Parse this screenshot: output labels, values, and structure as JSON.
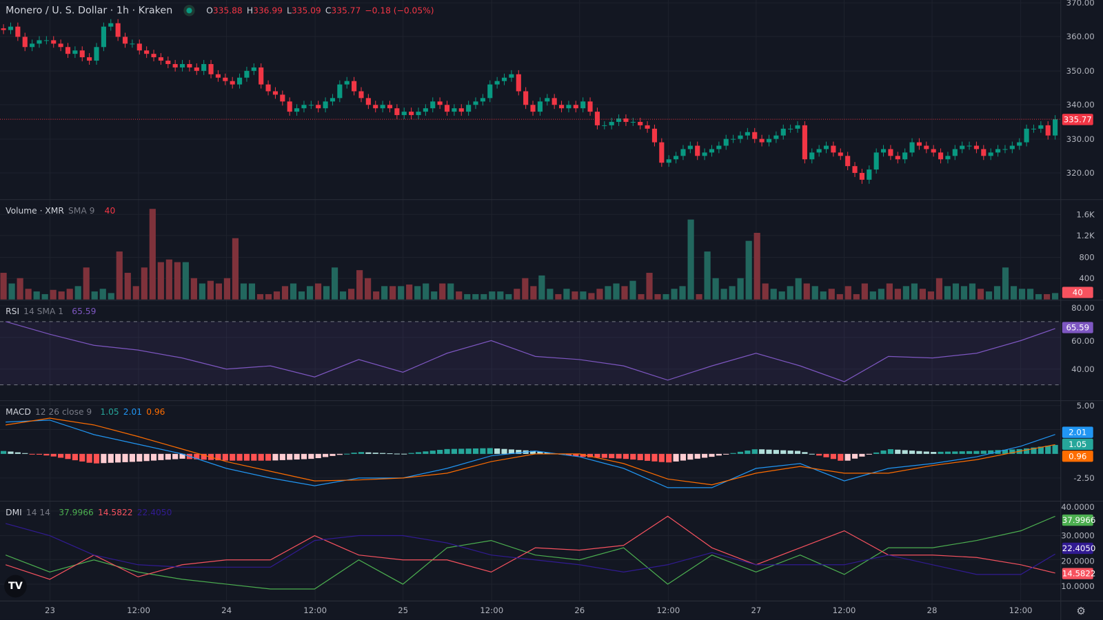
{
  "header": {
    "title": "Monero / U. S. Dollar · 1h · Kraken",
    "open_label": "O",
    "open": "335.88",
    "high_label": "H",
    "high": "336.99",
    "low_label": "L",
    "low": "335.09",
    "close_label": "C",
    "close": "335.77",
    "change": "−0.18 (−0.05%)",
    "status_color": "#089981"
  },
  "colors": {
    "up": "#089981",
    "down": "#f23645",
    "vol_up": "#22675e",
    "vol_down": "#7f323b",
    "rsi": "#7e57c2",
    "macd": "#2196f3",
    "signal": "#ff6d00",
    "plus_di": "#4caf50",
    "minus_di": "#f7525f",
    "adx": "#311b92"
  },
  "volume": {
    "label": "Volume · XMR",
    "param": "SMA 9",
    "value": "40",
    "ticks": [
      "1.6K",
      "1.2K",
      "800",
      "400"
    ]
  },
  "rsi": {
    "label": "RSI",
    "param": "14 SMA 1",
    "value": "65.59",
    "ticks": [
      "80.00",
      "60.00",
      "40.00"
    ]
  },
  "macd": {
    "label": "MACD",
    "param": "12 26 close 9",
    "hist": "1.05",
    "macd": "2.01",
    "signal": "0.96",
    "ticks": [
      "5.00",
      "-2.50"
    ]
  },
  "dmi": {
    "label": "DMI",
    "param": "14 14",
    "plus": "37.9966",
    "minus": "14.5822",
    "adx": "22.4050",
    "ticks": [
      "40.0000",
      "30.0000",
      "20.0000",
      "10.0000"
    ]
  },
  "price_axis": {
    "ticks": [
      "370.00",
      "360.00",
      "350.00",
      "340.00",
      "330.00",
      "320.00"
    ],
    "last": "335.77"
  },
  "time_axis": [
    "23",
    "12:00",
    "24",
    "12:00",
    "25",
    "12:00",
    "26",
    "12:00",
    "27",
    "12:00",
    "28",
    "12:00"
  ],
  "chart_data": [
    {
      "type": "candlestick",
      "title": "Monero / U. S. Dollar · 1h · Kraken",
      "ylim": [
        316,
        370
      ],
      "closes": [
        362,
        363,
        360,
        357,
        358,
        359,
        359,
        358,
        357,
        355,
        356,
        354,
        353,
        357,
        363,
        364,
        360,
        358,
        358,
        356,
        355,
        354,
        353,
        352,
        351,
        352,
        351,
        350,
        352,
        349,
        348,
        347,
        346,
        348,
        350,
        351,
        346,
        344,
        343,
        341,
        338,
        339,
        340,
        340,
        339,
        341,
        342,
        346,
        347,
        344,
        342,
        340,
        339,
        340,
        339,
        337,
        338,
        337,
        338,
        339,
        341,
        340,
        338,
        339,
        338,
        340,
        341,
        342,
        346,
        347,
        348,
        349,
        344,
        340,
        338,
        341,
        342,
        340,
        339,
        340,
        339,
        341,
        338,
        334,
        334,
        335,
        336,
        335,
        335,
        334,
        333,
        329,
        323,
        324,
        325,
        327,
        328,
        325,
        326,
        327,
        328,
        330,
        330,
        331,
        332,
        330,
        329,
        330,
        331,
        333,
        333,
        334,
        324,
        326,
        327,
        328,
        326,
        325,
        322,
        320,
        318,
        321,
        326,
        327,
        325,
        324,
        326,
        329,
        328,
        327,
        326,
        324,
        325,
        327,
        328,
        328,
        327,
        325,
        326,
        327,
        327,
        328,
        329,
        333,
        333,
        334,
        331,
        335.77
      ]
    },
    {
      "type": "bar",
      "title": "Volume · XMR",
      "ylim": [
        0,
        1700
      ],
      "values": [
        500,
        300,
        400,
        200,
        150,
        100,
        180,
        150,
        200,
        250,
        600,
        150,
        200,
        120,
        900,
        500,
        250,
        600,
        1700,
        700,
        750,
        700,
        700,
        400,
        300,
        350,
        300,
        400,
        1150,
        300,
        300,
        100,
        100,
        150,
        250,
        300,
        150,
        250,
        300,
        250,
        600,
        150,
        200,
        550,
        400,
        150,
        250,
        250,
        250,
        280,
        250,
        300,
        150,
        300,
        300,
        150,
        100,
        100,
        100,
        150,
        150,
        100,
        200,
        400,
        250,
        450,
        200,
        100,
        200,
        150,
        150,
        120,
        200,
        250,
        300,
        250,
        350,
        100,
        500,
        100,
        100,
        200,
        250,
        1500,
        100,
        900,
        400,
        200,
        250,
        400,
        1100,
        1250,
        300,
        200,
        150,
        250,
        400,
        300,
        250,
        150,
        200,
        100,
        250,
        100,
        300,
        150,
        200,
        300,
        200,
        250,
        300,
        200,
        150,
        400,
        250,
        300,
        250,
        300,
        200,
        150,
        250,
        600,
        250,
        200,
        200,
        100,
        100,
        120
      ]
    },
    {
      "type": "line",
      "title": "RSI 14",
      "ylim": [
        22,
        83
      ],
      "bands": [
        70,
        30
      ],
      "x": [
        "22 18:00",
        "23 00:00",
        "23 06:00",
        "23 12:00",
        "23 18:00",
        "24 00:00",
        "24 06:00",
        "24 12:00",
        "24 18:00",
        "25 00:00",
        "25 06:00",
        "25 12:00",
        "25 18:00",
        "26 00:00",
        "26 06:00",
        "26 12:00",
        "26 18:00",
        "27 00:00",
        "27 06:00",
        "27 12:00",
        "27 18:00",
        "28 00:00",
        "28 06:00",
        "28 12:00",
        "28 18:00"
      ],
      "values": [
        70,
        62,
        55,
        52,
        47,
        40,
        42,
        35,
        46,
        38,
        50,
        58,
        48,
        46,
        42,
        33,
        42,
        50,
        42,
        32,
        48,
        47,
        50,
        58,
        65.59
      ]
    },
    {
      "type": "line",
      "title": "MACD 12 26 close 9",
      "ylim": [
        -4.5,
        5.5
      ],
      "series": [
        {
          "name": "MACD",
          "values": [
            3.3,
            3.5,
            2.0,
            1.0,
            0,
            -1.5,
            -2.5,
            -3.3,
            -2.5,
            -2.5,
            -1.5,
            -0.2,
            0.3,
            -0.3,
            -1.5,
            -3.5,
            -3.5,
            -1.5,
            -1.0,
            -2.8,
            -1.5,
            -1.0,
            -0.3,
            0.8,
            2.01
          ]
        },
        {
          "name": "Signal",
          "values": [
            3.0,
            3.7,
            3.0,
            1.8,
            0.5,
            -0.8,
            -1.8,
            -2.8,
            -2.7,
            -2.5,
            -2.0,
            -0.8,
            0,
            0,
            -1.0,
            -2.6,
            -3.2,
            -2.0,
            -1.3,
            -2.0,
            -2.0,
            -1.2,
            -0.6,
            0.3,
            0.96
          ]
        }
      ]
    },
    {
      "type": "line",
      "title": "DMI 14 14",
      "ylim": [
        5,
        42
      ],
      "series": [
        {
          "name": "+DI",
          "values": [
            22,
            15,
            20,
            15,
            12,
            10,
            8,
            8,
            20,
            10,
            25,
            28,
            22,
            20,
            25,
            10,
            22,
            15,
            22,
            14,
            25,
            25,
            28,
            32,
            38
          ]
        },
        {
          "name": "-DI",
          "values": [
            18,
            12,
            22,
            13,
            18,
            20,
            20,
            30,
            22,
            20,
            20,
            15,
            25,
            24,
            26,
            38,
            25,
            18,
            25,
            32,
            22,
            22,
            21,
            18,
            14.58
          ]
        },
        {
          "name": "ADX",
          "values": [
            35,
            30,
            22,
            18,
            17,
            17,
            17,
            28,
            30,
            30,
            27,
            22,
            20,
            18,
            15,
            18,
            23,
            18,
            18,
            18,
            22,
            18,
            14,
            14,
            22.4
          ]
        }
      ]
    }
  ]
}
